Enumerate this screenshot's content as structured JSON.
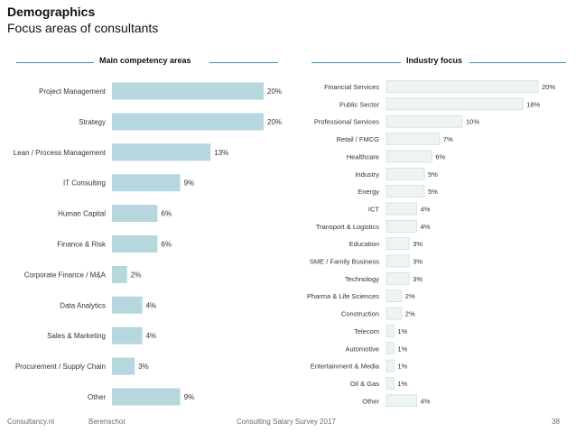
{
  "header": {
    "title": "Demographics",
    "subtitle": "Focus areas of consultants"
  },
  "left_section": {
    "label": "Main competency areas"
  },
  "right_section": {
    "label": "Industry focus"
  },
  "footer": {
    "left": "Consultancy.nl",
    "brand": "Berenschot",
    "center": "Consulting Salary Survey 2017",
    "page": "38"
  },
  "colors": {
    "left_bar": "#b6d7de",
    "right_bar": "#eef3f4",
    "right_bar_border": "#c9d5d8",
    "section_line": "#3a8fb5"
  },
  "chart_data": [
    {
      "type": "bar",
      "orientation": "horizontal",
      "title": "Main competency areas",
      "categories": [
        "Project Management",
        "Strategy",
        "Lean / Process Management",
        "IT Consulting",
        "Human Capital",
        "Finance & Risk",
        "Corporate Finance / M&A",
        "Data Analytics",
        "Sales & Marketing",
        "Procurement / Supply Chain",
        "Other"
      ],
      "values": [
        20,
        20,
        13,
        9,
        6,
        6,
        2,
        4,
        4,
        3,
        9
      ],
      "data_labels": [
        "20%",
        "20%",
        "13%",
        "9%",
        "6%",
        "6%",
        "2%",
        "4%",
        "4%",
        "3%",
        "9%"
      ],
      "unit": "%",
      "xlim": [
        0,
        20
      ]
    },
    {
      "type": "bar",
      "orientation": "horizontal",
      "title": "Industry focus",
      "categories": [
        "Financial Services",
        "Public Sector",
        "Professional Services",
        "Retail / FMCG",
        "Healthcare",
        "Industry",
        "Energy",
        "ICT",
        "Transport & Logistics",
        "Education",
        "SME / Family Business",
        "Technology",
        "Pharma & Life Sciences",
        "Construction",
        "Telecom",
        "Automotive",
        "Entertainment & Media",
        "Oil & Gas",
        "Other"
      ],
      "values": [
        20,
        18,
        10,
        7,
        6,
        5,
        5,
        4,
        4,
        3,
        3,
        3,
        2,
        2,
        1,
        1,
        1,
        1,
        4
      ],
      "data_labels": [
        "20%",
        "18%",
        "10%",
        "7%",
        "6%",
        "5%",
        "5%",
        "4%",
        "4%",
        "3%",
        "3%",
        "3%",
        "2%",
        "2%",
        "1%",
        "1%",
        "1%",
        "1%",
        "4%"
      ],
      "unit": "%",
      "xlim": [
        0,
        20
      ]
    }
  ]
}
